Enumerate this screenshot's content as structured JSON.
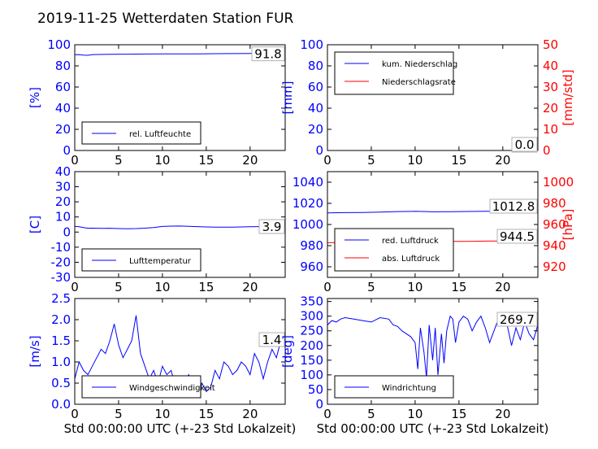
{
  "title": "2019-11-25 Wetterdaten Station FUR",
  "colors": {
    "primary": "#0000ff",
    "secondary": "#ff0000",
    "axis": "#000000"
  },
  "chart_data": [
    {
      "id": "humidity",
      "type": "line",
      "ylabel": "[%]",
      "ylim": [
        0,
        100
      ],
      "yticks": [
        0,
        20,
        40,
        60,
        80,
        100
      ],
      "xlim": [
        0,
        24
      ],
      "xticks": [
        0,
        5,
        10,
        15,
        20
      ],
      "xlabel": "",
      "series": [
        {
          "name": "rel. Luftfeuchte",
          "color": "#0000ff",
          "x": [
            0,
            0.5,
            1,
            1.5,
            2,
            4,
            6,
            8,
            10,
            12,
            14,
            16,
            18,
            20,
            22,
            24
          ],
          "y": [
            90.5,
            90.7,
            90.2,
            90.0,
            90.7,
            91.0,
            91.1,
            91.2,
            91.3,
            91.4,
            91.4,
            91.5,
            91.6,
            91.7,
            91.7,
            91.8
          ]
        }
      ],
      "current_value": "91.8",
      "legend_position": "lower-left"
    },
    {
      "id": "precipitation",
      "type": "line",
      "ylabel": "[mm]",
      "ylim": [
        0,
        100
      ],
      "yticks": [
        0,
        20,
        40,
        60,
        80,
        100
      ],
      "y2label": "[mm/std]",
      "y2lim": [
        0,
        50
      ],
      "y2ticks": [
        0,
        10,
        20,
        30,
        40,
        50
      ],
      "xlim": [
        0,
        24
      ],
      "xticks": [
        0,
        5,
        10,
        15,
        20
      ],
      "xlabel": "",
      "series": [
        {
          "name": "kum. Niederschlag",
          "color": "#0000ff",
          "axis": "left",
          "x": [
            0,
            24
          ],
          "y": [
            0,
            0
          ]
        },
        {
          "name": "Niederschlagsrate",
          "color": "#ff0000",
          "axis": "right",
          "x": [
            0,
            24
          ],
          "y": [
            0,
            0
          ]
        }
      ],
      "current_value": "0.0",
      "current_value2": "0.0",
      "legend_position": "upper-left"
    },
    {
      "id": "temperature",
      "type": "line",
      "ylabel": "[C]",
      "ylim": [
        -30,
        40
      ],
      "yticks": [
        -30,
        -20,
        -10,
        0,
        10,
        20,
        30,
        40
      ],
      "xlim": [
        0,
        24
      ],
      "xticks": [
        0,
        5,
        10,
        15,
        20
      ],
      "xlabel": "",
      "series": [
        {
          "name": "Lufttemperatur",
          "color": "#0000ff",
          "x": [
            0,
            0.5,
            1,
            1.5,
            2,
            3,
            4,
            5,
            6,
            7,
            8,
            9,
            10,
            11,
            12,
            13,
            14,
            15,
            16,
            17,
            18,
            19,
            20,
            21,
            22,
            23,
            24
          ],
          "y": [
            3.8,
            3.5,
            3.0,
            2.5,
            2.6,
            2.4,
            2.5,
            2.3,
            2.2,
            2.3,
            2.6,
            3.0,
            3.7,
            3.9,
            4.0,
            3.8,
            3.6,
            3.4,
            3.3,
            3.2,
            3.3,
            3.4,
            3.5,
            3.6,
            3.7,
            3.8,
            3.9
          ]
        }
      ],
      "current_value": "3.9",
      "legend_position": "lower-left"
    },
    {
      "id": "pressure",
      "type": "line",
      "ylabel": "",
      "ylim": [
        950,
        1050
      ],
      "yticks": [
        960,
        980,
        1000,
        1020,
        1040
      ],
      "y2label": "[hPa]",
      "y2lim": [
        910,
        1010
      ],
      "y2ticks": [
        920,
        940,
        960,
        980,
        1000
      ],
      "xlim": [
        0,
        24
      ],
      "xticks": [
        0,
        5,
        10,
        15,
        20
      ],
      "xlabel": "",
      "series": [
        {
          "name": "red. Luftdruck",
          "color": "#0000ff",
          "axis": "left",
          "x": [
            0,
            2,
            4,
            6,
            8,
            10,
            12,
            14,
            16,
            18,
            20,
            22,
            24
          ],
          "y": [
            1011.0,
            1011.2,
            1011.4,
            1011.8,
            1012.2,
            1012.5,
            1012.0,
            1012.1,
            1012.3,
            1012.5,
            1012.6,
            1012.7,
            1012.8
          ]
        },
        {
          "name": "abs. Luftdruck",
          "color": "#ff0000",
          "axis": "right",
          "x": [
            0,
            2,
            4,
            6,
            8,
            10,
            12,
            14,
            16,
            18,
            20,
            22,
            24
          ],
          "y": [
            942.8,
            943.0,
            943.2,
            943.5,
            943.8,
            944.0,
            943.8,
            944.0,
            944.1,
            944.3,
            944.4,
            944.5,
            944.5
          ]
        }
      ],
      "current_value": "1012.8",
      "current_value2": "944.5",
      "legend_position": "lower-left"
    },
    {
      "id": "windspeed",
      "type": "line",
      "ylabel": "[m/s]",
      "ylim": [
        0,
        2.5
      ],
      "yticks": [
        0.0,
        0.5,
        1.0,
        1.5,
        2.0,
        2.5
      ],
      "xlim": [
        0,
        24
      ],
      "xticks": [
        0,
        5,
        10,
        15,
        20
      ],
      "xlabel": "Std 00:00:00 UTC (+-23 Std Lokalzeit)",
      "series": [
        {
          "name": "Windgeschwindigkeit",
          "color": "#0000ff",
          "x": [
            0,
            0.5,
            1,
            1.5,
            2,
            2.5,
            3,
            3.5,
            4,
            4.5,
            5,
            5.5,
            6,
            6.5,
            7,
            7.5,
            8,
            8.5,
            9,
            9.5,
            10,
            10.5,
            11,
            11.5,
            12,
            12.5,
            13,
            13.5,
            14,
            14.5,
            15,
            15.5,
            16,
            16.5,
            17,
            17.5,
            18,
            18.5,
            19,
            19.5,
            20,
            20.5,
            21,
            21.5,
            22,
            22.5,
            23,
            23.5,
            24
          ],
          "y": [
            0.6,
            1.0,
            0.8,
            0.7,
            0.9,
            1.1,
            1.3,
            1.2,
            1.5,
            1.9,
            1.4,
            1.1,
            1.3,
            1.5,
            2.1,
            1.2,
            0.9,
            0.6,
            0.8,
            0.5,
            0.9,
            0.7,
            0.8,
            0.4,
            0.6,
            0.5,
            0.7,
            0.4,
            0.3,
            0.5,
            0.3,
            0.4,
            0.8,
            0.6,
            1.0,
            0.9,
            0.7,
            0.8,
            1.0,
            0.9,
            0.7,
            1.2,
            1.0,
            0.6,
            1.0,
            1.3,
            1.1,
            1.5,
            1.4
          ]
        }
      ],
      "current_value": "1.4",
      "legend_position": "lower-left"
    },
    {
      "id": "winddirection",
      "type": "line",
      "ylabel": "[deg]",
      "ylim": [
        0,
        360
      ],
      "yticks": [
        0,
        50,
        100,
        150,
        200,
        250,
        300,
        350
      ],
      "xlim": [
        0,
        24
      ],
      "xticks": [
        0,
        5,
        10,
        15,
        20
      ],
      "xlabel": "Std 00:00:00 UTC (+-23 Std Lokalzeit)",
      "series": [
        {
          "name": "Windrichtung",
          "color": "#0000ff",
          "x": [
            0,
            0.5,
            1,
            1.5,
            2,
            3,
            4,
            5,
            6,
            7,
            7.5,
            8,
            8.5,
            9,
            9.5,
            10,
            10.3,
            10.6,
            11,
            11.3,
            11.6,
            12,
            12.3,
            12.6,
            13,
            13.3,
            13.6,
            14,
            14.3,
            14.6,
            15,
            15.5,
            16,
            16.5,
            17,
            17.5,
            18,
            18.5,
            19,
            19.5,
            20,
            20.5,
            21,
            21.5,
            22,
            22.5,
            23,
            23.5,
            24
          ],
          "y": [
            270,
            285,
            280,
            290,
            295,
            290,
            285,
            280,
            295,
            290,
            270,
            265,
            250,
            240,
            230,
            210,
            120,
            260,
            180,
            90,
            270,
            150,
            260,
            100,
            240,
            140,
            250,
            300,
            290,
            210,
            280,
            300,
            290,
            250,
            280,
            300,
            260,
            210,
            250,
            290,
            280,
            270,
            200,
            260,
            220,
            280,
            240,
            220,
            270
          ]
        }
      ],
      "current_value": "269.7",
      "legend_position": "lower-left"
    }
  ]
}
